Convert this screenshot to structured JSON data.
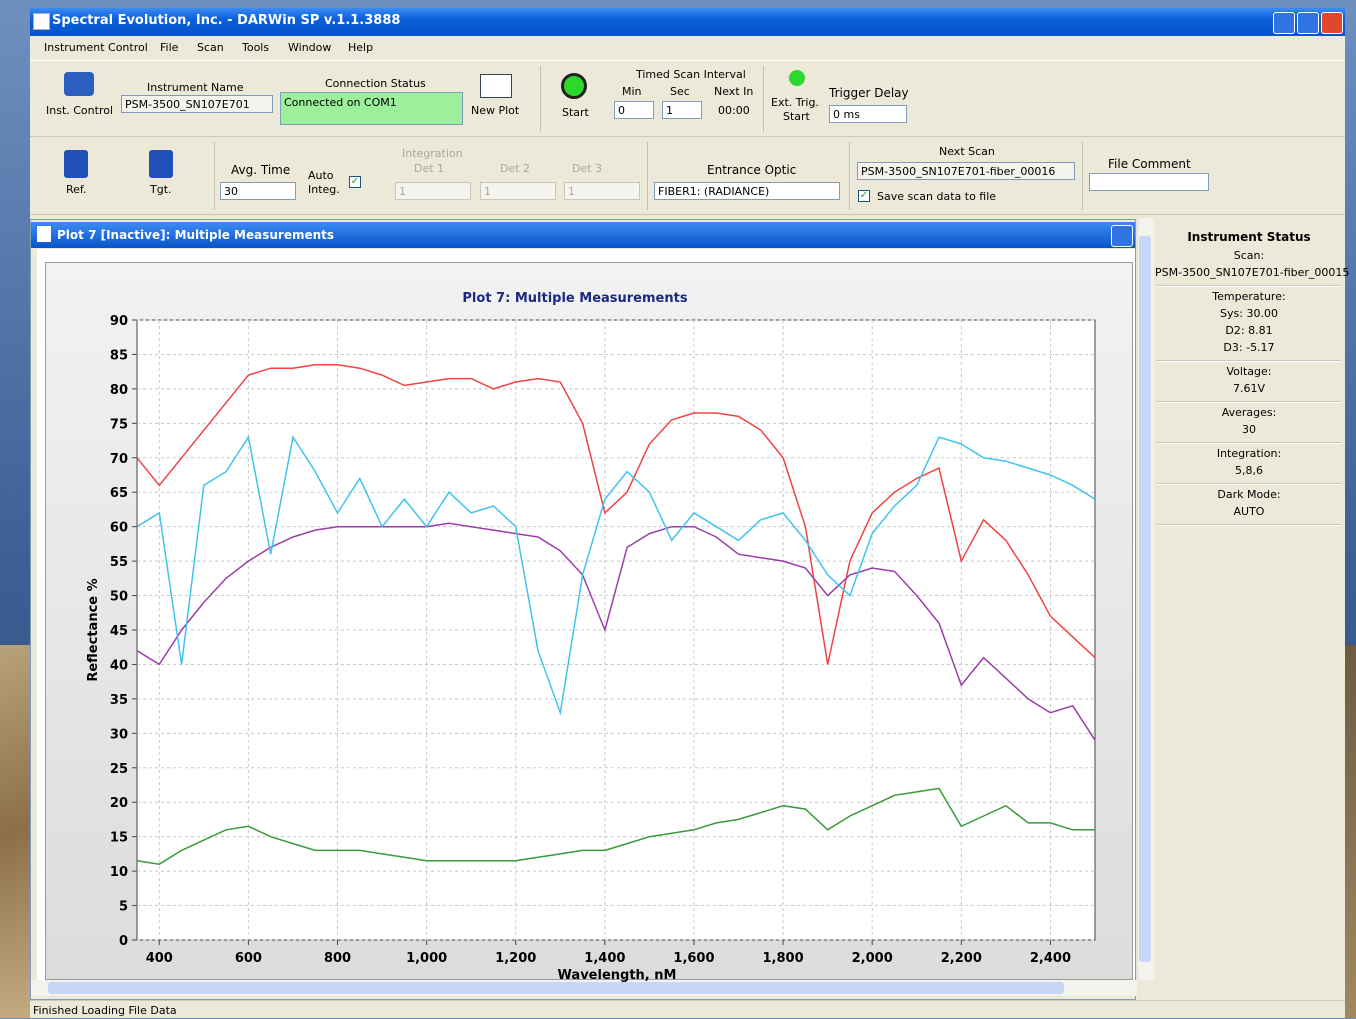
{
  "window": {
    "title": "Spectral Evolution, Inc. - DARWin SP v.1.1.3888",
    "menu": [
      "Instrument Control",
      "File",
      "Scan",
      "Tools",
      "Window",
      "Help"
    ],
    "status_bar": "Finished Loading File Data"
  },
  "toolbar": {
    "inst_control": "Inst. Control",
    "instrument_name_label": "Instrument Name",
    "instrument_name": "PSM-3500_SN107E701",
    "connection_status_label": "Connection Status",
    "connection_status": "Connected on COM1",
    "new_plot": "New Plot",
    "start": "Start",
    "timed_scan_label": "Timed Scan Interval",
    "min_label": "Min",
    "sec_label": "Sec",
    "next_in_label": "Next In",
    "min": "0",
    "sec": "1",
    "next_in": "00:00",
    "ext_trig": "Ext. Trig.",
    "ext_trig_start": "Start",
    "trigger_delay_label": "Trigger Delay",
    "trigger_delay": "0 ms",
    "ref": "Ref.",
    "tgt": "Tgt.",
    "avg_time_label": "Avg. Time",
    "avg_time": "30",
    "auto_integ": "Auto",
    "auto_integ2": "Integ.",
    "integration_label": "Integration",
    "det_labels": [
      "Det 1",
      "Det 2",
      "Det 3"
    ],
    "det_values": [
      "1",
      "1",
      "1"
    ],
    "entrance_optic_label": "Entrance Optic",
    "entrance_optic": "FIBER1: (RADIANCE)",
    "next_scan_label": "Next Scan",
    "next_scan": "PSM-3500_SN107E701-fiber_00016",
    "save_scan": "Save scan data to file",
    "file_comment_label": "File Comment"
  },
  "plot_window": {
    "title": "Plot 7 [Inactive]: Multiple Measurements"
  },
  "chart_data": {
    "type": "line",
    "title": "Plot 7: Multiple Measurements",
    "x_label": "Wavelength, nM",
    "y_label": "Reflectance %",
    "x": [
      350,
      400,
      450,
      500,
      550,
      600,
      650,
      700,
      750,
      800,
      850,
      900,
      950,
      1000,
      1050,
      1100,
      1150,
      1200,
      1250,
      1300,
      1350,
      1400,
      1450,
      1500,
      1550,
      1600,
      1650,
      1700,
      1750,
      1800,
      1850,
      1900,
      1950,
      2000,
      2050,
      2100,
      2150,
      2200,
      2250,
      2300,
      2350,
      2400,
      2450,
      2500
    ],
    "series": [
      {
        "color": "#f04343",
        "values": [
          70,
          66,
          70,
          74,
          78,
          82,
          83,
          83,
          83.5,
          83.5,
          83,
          82,
          80.5,
          81,
          81.5,
          81.5,
          80,
          81,
          81.5,
          81,
          75,
          62,
          65,
          72,
          75.5,
          76.5,
          76.5,
          76,
          74,
          70,
          60,
          40,
          55,
          62,
          65,
          67,
          68.5,
          55,
          61,
          58,
          53,
          47,
          44,
          41
        ]
      },
      {
        "color": "#9a3fa8",
        "values": [
          42,
          40,
          45,
          49,
          52.5,
          55,
          57,
          58.5,
          59.5,
          60,
          60,
          60,
          60,
          60,
          60.5,
          60,
          59.5,
          59,
          58.5,
          56.5,
          53,
          45,
          57,
          59,
          60,
          60,
          58.5,
          56,
          55.5,
          55,
          54,
          50,
          53,
          54,
          53.5,
          50,
          46,
          37,
          41,
          38,
          35,
          33,
          34,
          29
        ]
      },
      {
        "color": "#40c4ee",
        "values": [
          60,
          62,
          40,
          66,
          68,
          73,
          56,
          73,
          68,
          62,
          67,
          60,
          64,
          60,
          65,
          62,
          63,
          60,
          42,
          33,
          53,
          64,
          68,
          65,
          58,
          62,
          60,
          58,
          61,
          62,
          58,
          53,
          50,
          59,
          63,
          66,
          73,
          72,
          70,
          69.5,
          68.5,
          67.5,
          66,
          64
        ]
      },
      {
        "color": "#3a9a3a",
        "values": [
          11.5,
          11,
          13,
          14.5,
          16,
          16.5,
          15,
          14,
          13,
          13,
          13,
          12.5,
          12,
          11.5,
          11.5,
          11.5,
          11.5,
          11.5,
          12,
          12.5,
          13,
          13,
          14,
          15,
          15.5,
          16,
          17,
          17.5,
          18.5,
          19.5,
          19,
          16,
          18,
          19.5,
          21,
          21.5,
          22,
          16.5,
          18,
          19.5,
          17,
          17,
          16,
          16
        ]
      }
    ],
    "xlim": [
      350,
      2500
    ],
    "ylim": [
      0,
      90
    ],
    "xticks": [
      400,
      600,
      800,
      {
        "value": 1000,
        "label": "1,000"
      },
      {
        "value": 1200,
        "label": "1,200"
      },
      {
        "value": 1400,
        "label": "1,400"
      },
      {
        "value": 1600,
        "label": "1,600"
      },
      {
        "value": 1800,
        "label": "1,800"
      },
      {
        "value": 2000,
        "label": "2,000"
      },
      {
        "value": 2200,
        "label": "2,200"
      },
      {
        "value": 2400,
        "label": "2,400"
      }
    ],
    "yticks": [
      0,
      5,
      10,
      15,
      20,
      25,
      30,
      35,
      40,
      45,
      50,
      55,
      60,
      65,
      70,
      75,
      80,
      85,
      90
    ],
    "grid": true
  },
  "status_panel": {
    "title": "Instrument Status",
    "sections": [
      {
        "label": "Scan:",
        "values": [
          "PSM-3500_SN107E701-fiber_00015"
        ]
      },
      {
        "label": "Temperature:",
        "values": [
          "Sys: 30.00",
          "D2: 8.81",
          "D3: -5.17"
        ]
      },
      {
        "label": "Voltage:",
        "values": [
          "7.61V"
        ]
      },
      {
        "label": "Averages:",
        "values": [
          "30"
        ]
      },
      {
        "label": "Integration:",
        "values": [
          "5,8,6"
        ]
      },
      {
        "label": "Dark Mode:",
        "values": [
          "AUTO"
        ]
      }
    ]
  }
}
